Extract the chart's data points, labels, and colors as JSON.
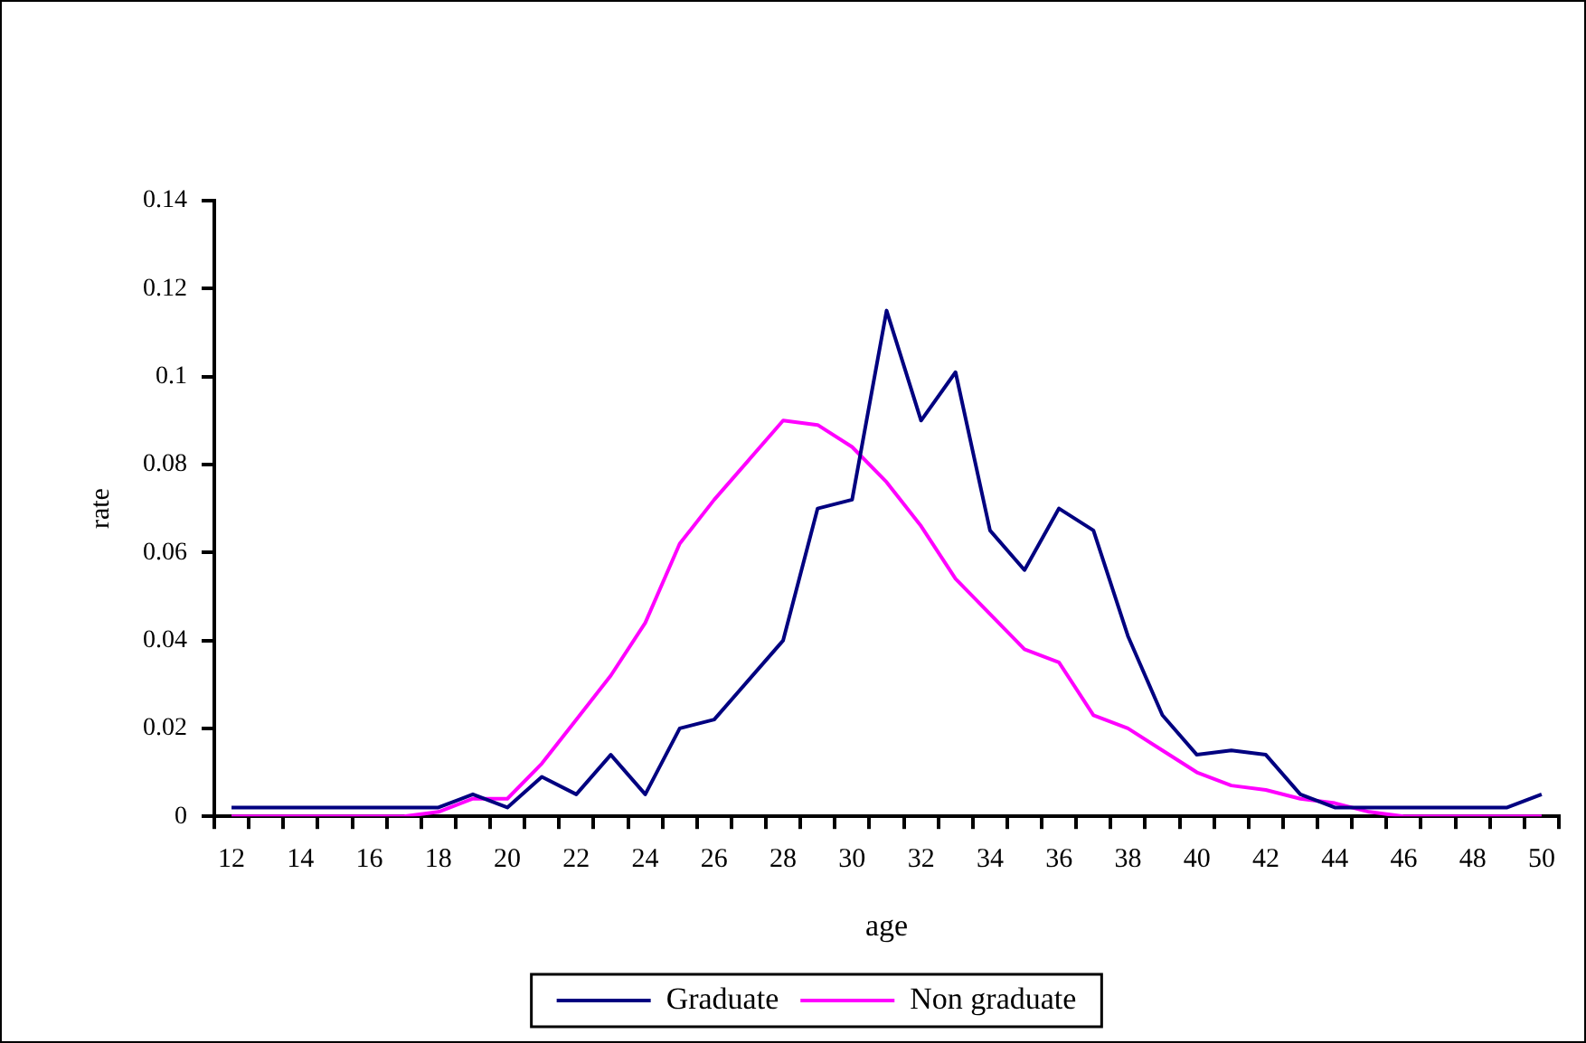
{
  "chart_data": {
    "type": "line",
    "xlabel": "age",
    "ylabel": "rate",
    "categories": [
      "12",
      null,
      "14",
      null,
      "16",
      null,
      "18",
      null,
      "20",
      null,
      "22",
      null,
      "24",
      null,
      "26",
      null,
      "28",
      null,
      "30",
      null,
      "32",
      null,
      "34",
      null,
      "36",
      null,
      "38",
      null,
      "40",
      null,
      "42",
      null,
      "44",
      null,
      "46",
      null,
      "48",
      null,
      "50"
    ],
    "series": [
      {
        "name": "Graduate",
        "color": "#000080",
        "values": [
          0.002,
          0.002,
          0.002,
          0.002,
          0.002,
          0.002,
          0.002,
          0.005,
          0.002,
          0.009,
          0.005,
          0.014,
          0.005,
          0.02,
          0.022,
          0.031,
          0.04,
          0.07,
          0.072,
          0.115,
          0.09,
          0.101,
          0.065,
          0.056,
          0.07,
          0.065,
          0.041,
          0.023,
          0.014,
          0.015,
          0.014,
          0.005,
          0.002,
          0.002,
          0.002,
          0.002,
          0.002,
          0.002,
          0.005
        ]
      },
      {
        "name": "Non graduate",
        "color": "#ff00ff",
        "values": [
          0,
          0,
          0,
          0,
          0,
          0,
          0.001,
          0.004,
          0.004,
          0.012,
          0.022,
          0.032,
          0.044,
          0.062,
          0.072,
          0.081,
          0.09,
          0.089,
          0.084,
          0.076,
          0.066,
          0.054,
          0.046,
          0.038,
          0.035,
          0.023,
          0.02,
          0.015,
          0.01,
          0.007,
          0.006,
          0.004,
          0.003,
          0.001,
          0,
          0,
          0,
          0,
          0
        ]
      }
    ],
    "ylim": [
      0,
      0.14
    ],
    "yticks": [
      0,
      0.02,
      0.04,
      0.06,
      0.08,
      0.1,
      0.12,
      0.14
    ],
    "grid": false,
    "legend": "bottom",
    "marker": "none",
    "line_style": "solid"
  }
}
